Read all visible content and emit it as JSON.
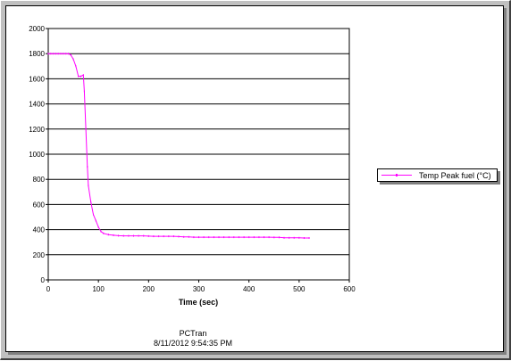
{
  "chart_data": {
    "type": "line",
    "xlabel": "Time (sec)",
    "ylabel": "",
    "xlim": [
      0,
      600
    ],
    "ylim": [
      0,
      2000
    ],
    "xticks": [
      0,
      100,
      200,
      300,
      400,
      500,
      600
    ],
    "yticks": [
      0,
      200,
      400,
      600,
      800,
      1000,
      1200,
      1400,
      1600,
      1800,
      2000
    ],
    "grid": "horizontal",
    "legend_position": "right",
    "series": [
      {
        "name": "Temp Peak fuel (°C)",
        "color": "#ff00ff",
        "x": [
          0,
          5,
          10,
          15,
          20,
          25,
          30,
          35,
          40,
          45,
          50,
          55,
          60,
          65,
          70,
          72,
          75,
          78,
          80,
          85,
          90,
          95,
          100,
          105,
          110,
          120,
          130,
          140,
          150,
          160,
          170,
          180,
          190,
          200,
          210,
          220,
          230,
          240,
          250,
          260,
          270,
          280,
          290,
          300,
          310,
          320,
          330,
          340,
          350,
          360,
          370,
          380,
          390,
          400,
          410,
          420,
          430,
          440,
          450,
          460,
          470,
          480,
          490,
          500,
          510,
          520
        ],
        "y": [
          1800,
          1800,
          1800,
          1800,
          1800,
          1800,
          1800,
          1800,
          1800,
          1790,
          1755,
          1700,
          1620,
          1620,
          1630,
          1500,
          1200,
          900,
          750,
          620,
          520,
          470,
          420,
          385,
          370,
          360,
          355,
          352,
          350,
          350,
          350,
          350,
          350,
          348,
          347,
          347,
          347,
          347,
          347,
          345,
          342,
          342,
          340,
          340,
          340,
          340,
          340,
          340,
          340,
          340,
          340,
          340,
          340,
          340,
          340,
          340,
          340,
          340,
          338,
          338,
          335,
          335,
          335,
          335,
          333,
          333
        ]
      }
    ]
  },
  "footer": {
    "app_name": "PCTran",
    "timestamp": "8/11/2012 9:54:35 PM"
  }
}
